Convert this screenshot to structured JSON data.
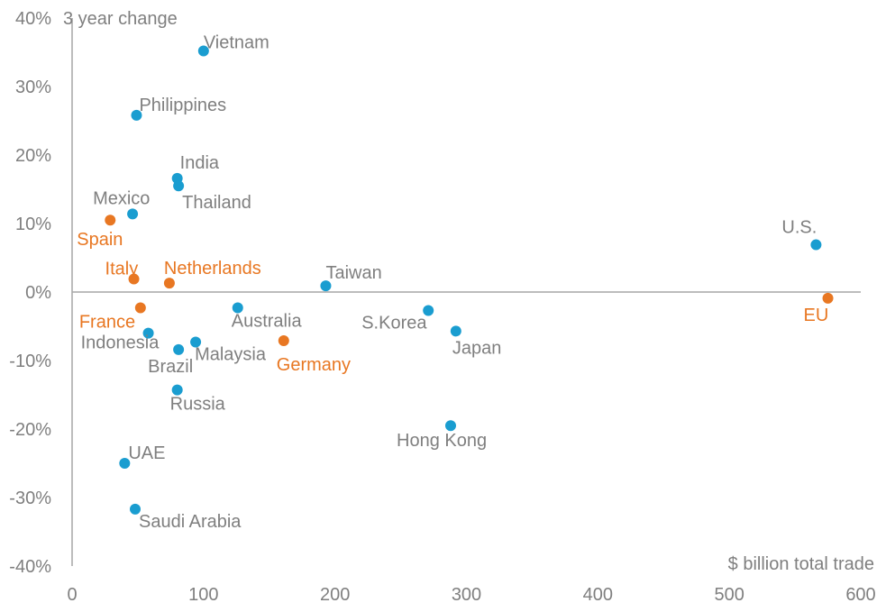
{
  "chart_data": {
    "type": "scatter",
    "title": "",
    "xlabel": "$ billion total trade",
    "ylabel": "3 year change",
    "xlim": [
      0,
      600
    ],
    "ylim": [
      -40,
      40
    ],
    "x_ticks": [
      0,
      100,
      200,
      300,
      400,
      500,
      600
    ],
    "y_ticks": [
      40,
      30,
      20,
      10,
      0,
      -10,
      -20,
      -30,
      -40
    ],
    "y_tick_labels": [
      "40%",
      "30%",
      "20%",
      "10%",
      "0%",
      "-10%",
      "-20%",
      "-30%",
      "-40%"
    ],
    "colors": {
      "blue": "#1a9dd0",
      "orange": "#e87722",
      "axis": "#a6a6a6",
      "text": "#7f7f7f"
    },
    "points": [
      {
        "label": "Vietnam",
        "x": 100,
        "y": 35.2,
        "color": "blue"
      },
      {
        "label": "Philippines",
        "x": 49,
        "y": 25.8,
        "color": "blue"
      },
      {
        "label": "India",
        "x": 80,
        "y": 16.6,
        "color": "blue"
      },
      {
        "label": "Thailand",
        "x": 81,
        "y": 15.5,
        "color": "blue"
      },
      {
        "label": "Mexico",
        "x": 46,
        "y": 11.4,
        "color": "blue"
      },
      {
        "label": "Spain",
        "x": 29,
        "y": 10.5,
        "color": "orange"
      },
      {
        "label": "U.S.",
        "x": 566,
        "y": 6.9,
        "color": "blue"
      },
      {
        "label": "Italy",
        "x": 47,
        "y": 1.9,
        "color": "orange"
      },
      {
        "label": "Netherlands",
        "x": 74,
        "y": 1.3,
        "color": "orange"
      },
      {
        "label": "Taiwan",
        "x": 193,
        "y": 0.9,
        "color": "blue"
      },
      {
        "label": "France",
        "x": 52,
        "y": -2.3,
        "color": "orange"
      },
      {
        "label": "EU",
        "x": 575,
        "y": -0.9,
        "color": "orange"
      },
      {
        "label": "Australia",
        "x": 126,
        "y": -2.3,
        "color": "blue"
      },
      {
        "label": "S.Korea",
        "x": 271,
        "y": -2.7,
        "color": "blue"
      },
      {
        "label": "Japan",
        "x": 292,
        "y": -5.7,
        "color": "blue"
      },
      {
        "label": "Indonesia",
        "x": 58,
        "y": -6.0,
        "color": "blue"
      },
      {
        "label": "Malaysia",
        "x": 94,
        "y": -7.3,
        "color": "blue"
      },
      {
        "label": "Germany",
        "x": 161,
        "y": -7.1,
        "color": "orange"
      },
      {
        "label": "Brazil",
        "x": 81,
        "y": -8.4,
        "color": "blue"
      },
      {
        "label": "Russia",
        "x": 80,
        "y": -14.3,
        "color": "blue"
      },
      {
        "label": "Hong Kong",
        "x": 288,
        "y": -19.5,
        "color": "blue"
      },
      {
        "label": "UAE",
        "x": 40,
        "y": -25.0,
        "color": "blue"
      },
      {
        "label": "Saudi Arabia",
        "x": 48,
        "y": -31.7,
        "color": "blue"
      }
    ],
    "grid": false,
    "legend": "none"
  }
}
